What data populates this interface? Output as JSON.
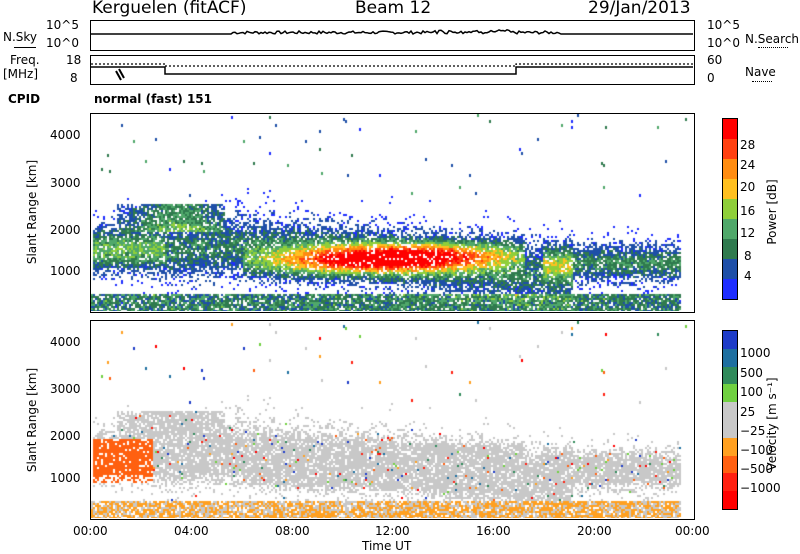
{
  "header": {
    "station": "Kerguelen (fitACF)",
    "beam": "Beam 12",
    "date": "29/Jan/2013"
  },
  "side_labels": {
    "nsky": "N.Sky",
    "nsearch": "N.Search",
    "freq": "Freq.",
    "freq_unit": "[MHz]",
    "nave": "Nave",
    "cpid": "CPID",
    "cpid_value": "normal (fast) 151"
  },
  "noise_axis": {
    "top": "10^5",
    "bottom": "10^0"
  },
  "freq_axis": {
    "top": "18",
    "bottom": "8"
  },
  "nave_axis": {
    "top": "60",
    "bottom": "0"
  },
  "range_axis": {
    "label": "Slant Range [km]",
    "ticks": [
      "4000",
      "3000",
      "2000",
      "1000"
    ]
  },
  "time_axis": {
    "label": "Time UT",
    "ticks": [
      "00:00",
      "04:00",
      "08:00",
      "12:00",
      "16:00",
      "20:00",
      "00:00"
    ]
  },
  "colors": {
    "power": [
      "#1e2dff",
      "#1e4fa8",
      "#2f7a4e",
      "#4fa86a",
      "#8fcf3a",
      "#ffc020",
      "#ff8c10",
      "#ff4010",
      "#ff0000"
    ],
    "velocity": [
      "#1e3cc8",
      "#1e6fa0",
      "#2f8a5a",
      "#6fd040",
      "#c8c8c8",
      "#c8c8c8",
      "#ffa020",
      "#ff6010",
      "#ff2010",
      "#ff0000"
    ]
  },
  "chart_data": [
    {
      "type": "heatmap",
      "ylabel": "Slant Range [km]",
      "xlabel": "Time UT",
      "ylim": [
        200,
        4600
      ],
      "colorbar": {
        "label": "Power [dB]",
        "ticks": [
          "28",
          "24",
          "20",
          "16",
          "12",
          "8",
          "4"
        ],
        "range": [
          0,
          32
        ]
      },
      "x": [
        "00:00",
        "04:00",
        "08:00",
        "12:00",
        "16:00",
        "20:00",
        "00:00"
      ]
    },
    {
      "type": "heatmap",
      "ylabel": "Slant Range [km]",
      "xlabel": "Time UT",
      "ylim": [
        200,
        4600
      ],
      "colorbar": {
        "label": "Velocity [m s⁻¹]",
        "ticks": [
          "1000",
          "500",
          "100",
          "25",
          "−25",
          "−100",
          "−500",
          "−1000"
        ]
      },
      "x": [
        "00:00",
        "04:00",
        "08:00",
        "12:00",
        "16:00",
        "20:00",
        "00:00"
      ]
    }
  ]
}
